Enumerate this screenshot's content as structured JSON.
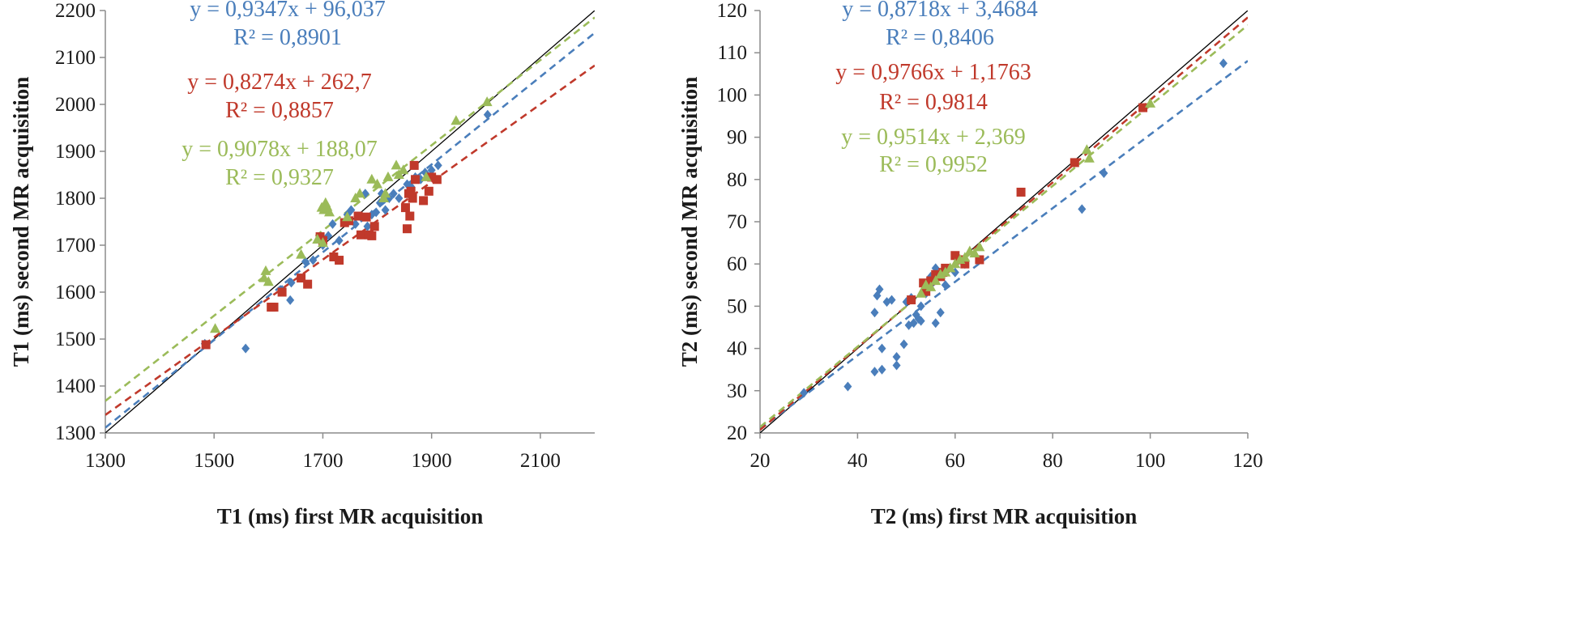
{
  "chart_data": [
    {
      "type": "scatter",
      "xlabel": "T1 (ms) first MR acquisition",
      "ylabel": "T1 (ms) second MR acquisition",
      "xlim": [
        1300,
        2200
      ],
      "ylim": [
        1300,
        2200
      ],
      "xticks": [
        "1300",
        "1500",
        "1700",
        "1900",
        "2100"
      ],
      "yticks": [
        "1300",
        "1400",
        "1500",
        "1600",
        "1700",
        "1800",
        "1900",
        "2000",
        "2100",
        "2200"
      ],
      "grid": false,
      "identity_line": true,
      "series": [
        {
          "name": "blue",
          "color": "#4a7ebb",
          "marker": "diamond",
          "equation": "y = 0,9347x + 96,037",
          "r2": "R² = 0,8901",
          "slope": 0.9347,
          "intercept": 96.037,
          "points": [
            [
              1483,
              1490
            ],
            [
              1558,
              1480
            ],
            [
              1625,
              1605
            ],
            [
              1640,
              1583
            ],
            [
              1642,
              1620
            ],
            [
              1668,
              1665
            ],
            [
              1682,
              1668
            ],
            [
              1700,
              1700
            ],
            [
              1710,
              1720
            ],
            [
              1718,
              1745
            ],
            [
              1730,
              1710
            ],
            [
              1745,
              1765
            ],
            [
              1752,
              1775
            ],
            [
              1760,
              1745
            ],
            [
              1770,
              1760
            ],
            [
              1778,
              1810
            ],
            [
              1782,
              1740
            ],
            [
              1790,
              1765
            ],
            [
              1798,
              1770
            ],
            [
              1805,
              1790
            ],
            [
              1808,
              1810
            ],
            [
              1815,
              1775
            ],
            [
              1822,
              1800
            ],
            [
              1830,
              1810
            ],
            [
              1840,
              1800
            ],
            [
              1855,
              1830
            ],
            [
              1862,
              1825
            ],
            [
              1870,
              1845
            ],
            [
              1880,
              1840
            ],
            [
              1888,
              1855
            ],
            [
              1900,
              1860
            ],
            [
              1912,
              1870
            ],
            [
              2003,
              1978
            ]
          ]
        },
        {
          "name": "red",
          "color": "#c0392b",
          "marker": "square",
          "equation": "y = 0,8274x + 262,7",
          "r2": "R² = 0,8857",
          "slope": 0.8274,
          "intercept": 262.7,
          "points": [
            [
              1485,
              1488
            ],
            [
              1605,
              1568
            ],
            [
              1610,
              1568
            ],
            [
              1625,
              1600
            ],
            [
              1660,
              1630
            ],
            [
              1672,
              1617
            ],
            [
              1695,
              1718
            ],
            [
              1700,
              1710
            ],
            [
              1720,
              1675
            ],
            [
              1730,
              1668
            ],
            [
              1740,
              1748
            ],
            [
              1748,
              1752
            ],
            [
              1765,
              1762
            ],
            [
              1770,
              1722
            ],
            [
              1780,
              1760
            ],
            [
              1785,
              1722
            ],
            [
              1790,
              1720
            ],
            [
              1795,
              1740
            ],
            [
              1852,
              1780
            ],
            [
              1855,
              1735
            ],
            [
              1858,
              1810
            ],
            [
              1860,
              1762
            ],
            [
              1862,
              1815
            ],
            [
              1865,
              1800
            ],
            [
              1868,
              1870
            ],
            [
              1870,
              1840
            ],
            [
              1885,
              1795
            ],
            [
              1895,
              1815
            ],
            [
              1900,
              1845
            ],
            [
              1910,
              1840
            ]
          ]
        },
        {
          "name": "green",
          "color": "#9bbb59",
          "marker": "triangle",
          "equation": "y = 0,9078x + 188,07",
          "r2": "R² = 0,9327",
          "slope": 0.9078,
          "intercept": 188.07,
          "points": [
            [
              1502,
              1522
            ],
            [
              1592,
              1630
            ],
            [
              1595,
              1645
            ],
            [
              1600,
              1622
            ],
            [
              1660,
              1680
            ],
            [
              1690,
              1712
            ],
            [
              1698,
              1780
            ],
            [
              1700,
              1705
            ],
            [
              1702,
              1775
            ],
            [
              1705,
              1790
            ],
            [
              1708,
              1782
            ],
            [
              1712,
              1770
            ],
            [
              1745,
              1760
            ],
            [
              1760,
              1800
            ],
            [
              1768,
              1810
            ],
            [
              1790,
              1840
            ],
            [
              1800,
              1830
            ],
            [
              1812,
              1800
            ],
            [
              1815,
              1810
            ],
            [
              1820,
              1845
            ],
            [
              1835,
              1870
            ],
            [
              1840,
              1850
            ],
            [
              1848,
              1860
            ],
            [
              1890,
              1845
            ],
            [
              1945,
              1965
            ],
            [
              2002,
              2005
            ]
          ]
        }
      ]
    },
    {
      "type": "scatter",
      "xlabel": "T2 (ms) first MR acquisition",
      "ylabel": "T2 (ms) second MR acquisition",
      "xlim": [
        20,
        120
      ],
      "ylim": [
        20,
        120
      ],
      "xticks": [
        "20",
        "40",
        "60",
        "80",
        "100",
        "120"
      ],
      "yticks": [
        "20",
        "30",
        "40",
        "50",
        "60",
        "70",
        "80",
        "90",
        "100",
        "110",
        "120"
      ],
      "grid": false,
      "identity_line": true,
      "series": [
        {
          "name": "blue",
          "color": "#4a7ebb",
          "marker": "diamond",
          "equation": "y = 0,8718x + 3,4684",
          "r2": "R² = 0,8406",
          "slope": 0.8718,
          "intercept": 3.4684,
          "points": [
            [
              29,
              29.5
            ],
            [
              38,
              31
            ],
            [
              43.5,
              34.5
            ],
            [
              43.5,
              48.5
            ],
            [
              44,
              52.5
            ],
            [
              44.5,
              54
            ],
            [
              45,
              35
            ],
            [
              45,
              40
            ],
            [
              46,
              51
            ],
            [
              47,
              51.5
            ],
            [
              48,
              38
            ],
            [
              48,
              36
            ],
            [
              49.5,
              41
            ],
            [
              50,
              51
            ],
            [
              50.5,
              45.5
            ],
            [
              51,
              52
            ],
            [
              51.5,
              46
            ],
            [
              52,
              48
            ],
            [
              52.5,
              47
            ],
            [
              53,
              50
            ],
            [
              53,
              46.5
            ],
            [
              54,
              53
            ],
            [
              55,
              55
            ],
            [
              55,
              57
            ],
            [
              56,
              46
            ],
            [
              56,
              59
            ],
            [
              57,
              48.5
            ],
            [
              58,
              55
            ],
            [
              60,
              58
            ],
            [
              62,
              60
            ],
            [
              86,
              73
            ],
            [
              90.5,
              81.5
            ],
            [
              115,
              107.5
            ]
          ]
        },
        {
          "name": "red",
          "color": "#c0392b",
          "marker": "square",
          "equation": "y = 0,9766x + 1,1763",
          "r2": "R² = 0,9814",
          "slope": 0.9766,
          "intercept": 1.1763,
          "points": [
            [
              51,
              51.5
            ],
            [
              53.5,
              55.5
            ],
            [
              54,
              53.5
            ],
            [
              55,
              56
            ],
            [
              56,
              57.5
            ],
            [
              57,
              57
            ],
            [
              57.5,
              58
            ],
            [
              58,
              59
            ],
            [
              60,
              62
            ],
            [
              61,
              61
            ],
            [
              62,
              60
            ],
            [
              65,
              61
            ],
            [
              73.5,
              77
            ],
            [
              84.5,
              84
            ],
            [
              98.5,
              97
            ]
          ]
        },
        {
          "name": "green",
          "color": "#9bbb59",
          "marker": "triangle",
          "equation": "y = 0,9514x + 2,369",
          "r2": "R² = 0,9952",
          "slope": 0.9514,
          "intercept": 2.369,
          "points": [
            [
              53,
              53
            ],
            [
              54,
              55
            ],
            [
              55,
              54.5
            ],
            [
              56,
              56
            ],
            [
              57,
              57.5
            ],
            [
              58,
              58
            ],
            [
              59,
              59
            ],
            [
              60,
              60
            ],
            [
              61,
              61
            ],
            [
              62,
              61.5
            ],
            [
              63,
              63
            ],
            [
              64,
              62.5
            ],
            [
              65,
              64
            ],
            [
              87,
              87
            ],
            [
              87.5,
              85
            ],
            [
              100,
              98
            ]
          ]
        }
      ]
    }
  ]
}
